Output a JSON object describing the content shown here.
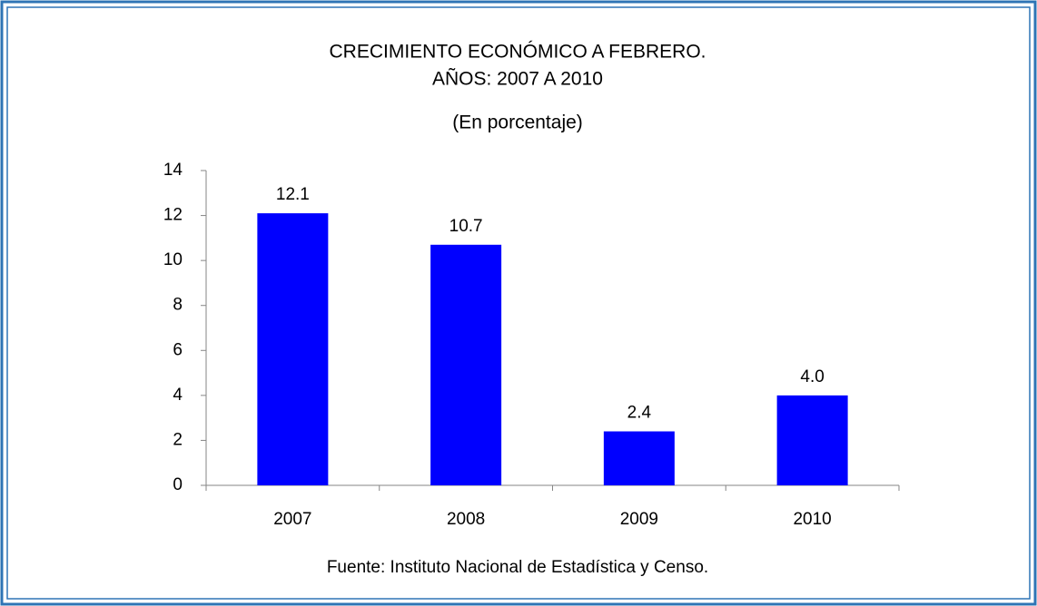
{
  "chart_data": {
    "type": "bar",
    "title": [
      "CRECIMIENTO ECONÓMICO A FEBRERO.",
      "AÑOS: 2007 A 2010"
    ],
    "subtitle": "(En porcentaje)",
    "categories": [
      "2007",
      "2008",
      "2009",
      "2010"
    ],
    "values": [
      12.1,
      10.7,
      2.4,
      4.0
    ],
    "value_labels": [
      "12.1",
      "10.7",
      "2.4",
      "4.0"
    ],
    "color": "#0000ff",
    "ylim": [
      0,
      14
    ],
    "yticks": [
      0,
      2,
      4,
      6,
      8,
      10,
      12,
      14
    ],
    "grid": false,
    "source": "Fuente: Instituto Nacional de Estadística y Censo."
  }
}
